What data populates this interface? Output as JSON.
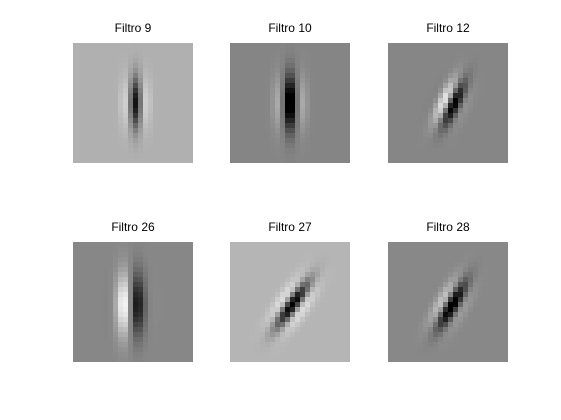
{
  "panels": [
    {
      "title": "Filtro 9",
      "background": "#b0b0b0",
      "kernel": {
        "sigma_x": 1.4,
        "sigma_y": 3.6,
        "freq": 0.17,
        "angle_deg": 0,
        "phase": 3.1416,
        "amp": 1.05,
        "center": [
          12.0,
          11.5
        ]
      }
    },
    {
      "title": "Filtro 10",
      "background": "#858585",
      "kernel": {
        "sigma_x": 1.6,
        "sigma_y": 3.8,
        "freq": 0.15,
        "angle_deg": 0,
        "phase": 3.1416,
        "amp": 1.15,
        "center": [
          11.5,
          11.5
        ]
      }
    },
    {
      "title": "Filtro 12",
      "background": "#868686",
      "kernel": {
        "sigma_x": 1.5,
        "sigma_y": 3.3,
        "freq": 0.17,
        "angle_deg": 25,
        "phase": 2.0,
        "amp": 1.1,
        "center": [
          12.0,
          11.5
        ]
      }
    },
    {
      "title": "Filtro 26",
      "background": "#878787",
      "kernel": {
        "sigma_x": 1.8,
        "sigma_y": 4.3,
        "freq": 0.12,
        "angle_deg": 0,
        "phase": 1.5708,
        "amp": 1.2,
        "center": [
          11.0,
          12.0
        ]
      }
    },
    {
      "title": "Filtro 27",
      "background": "#b5b5b5",
      "kernel": {
        "sigma_x": 1.5,
        "sigma_y": 3.8,
        "freq": 0.16,
        "angle_deg": 35,
        "phase": 3.1416,
        "amp": 1.25,
        "center": [
          12.0,
          12.0
        ]
      }
    },
    {
      "title": "Filtro 28",
      "background": "#888888",
      "kernel": {
        "sigma_x": 1.5,
        "sigma_y": 3.6,
        "freq": 0.16,
        "angle_deg": 30,
        "phase": 2.6,
        "amp": 1.1,
        "center": [
          12.0,
          12.0
        ]
      }
    }
  ],
  "grid_size": 24
}
